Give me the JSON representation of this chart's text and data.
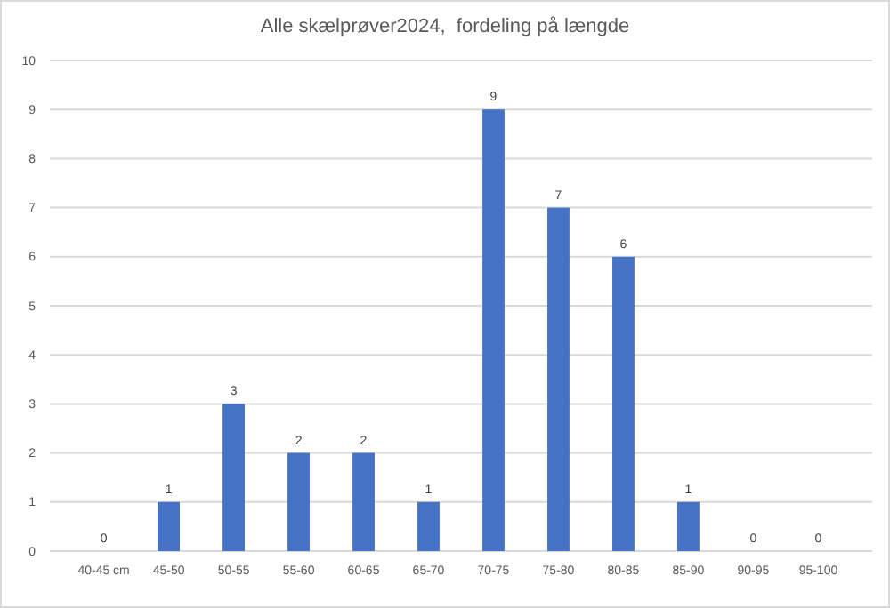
{
  "chart_data": {
    "type": "bar",
    "title": "Alle skælprøver2024,  fordeling på længde",
    "categories": [
      "40-45 cm",
      "45-50",
      "50-55",
      "55-60",
      "60-65",
      "65-70",
      "70-75",
      "75-80",
      "80-85",
      "85-90",
      "90-95",
      "95-100"
    ],
    "values": [
      0,
      1,
      3,
      2,
      2,
      1,
      9,
      7,
      6,
      1,
      0,
      0
    ],
    "color": "#4472c4",
    "ylim": [
      0,
      10
    ],
    "yticks": [
      0,
      1,
      2,
      3,
      4,
      5,
      6,
      7,
      8,
      9,
      10
    ],
    "grid": "y",
    "data_labels": true
  }
}
